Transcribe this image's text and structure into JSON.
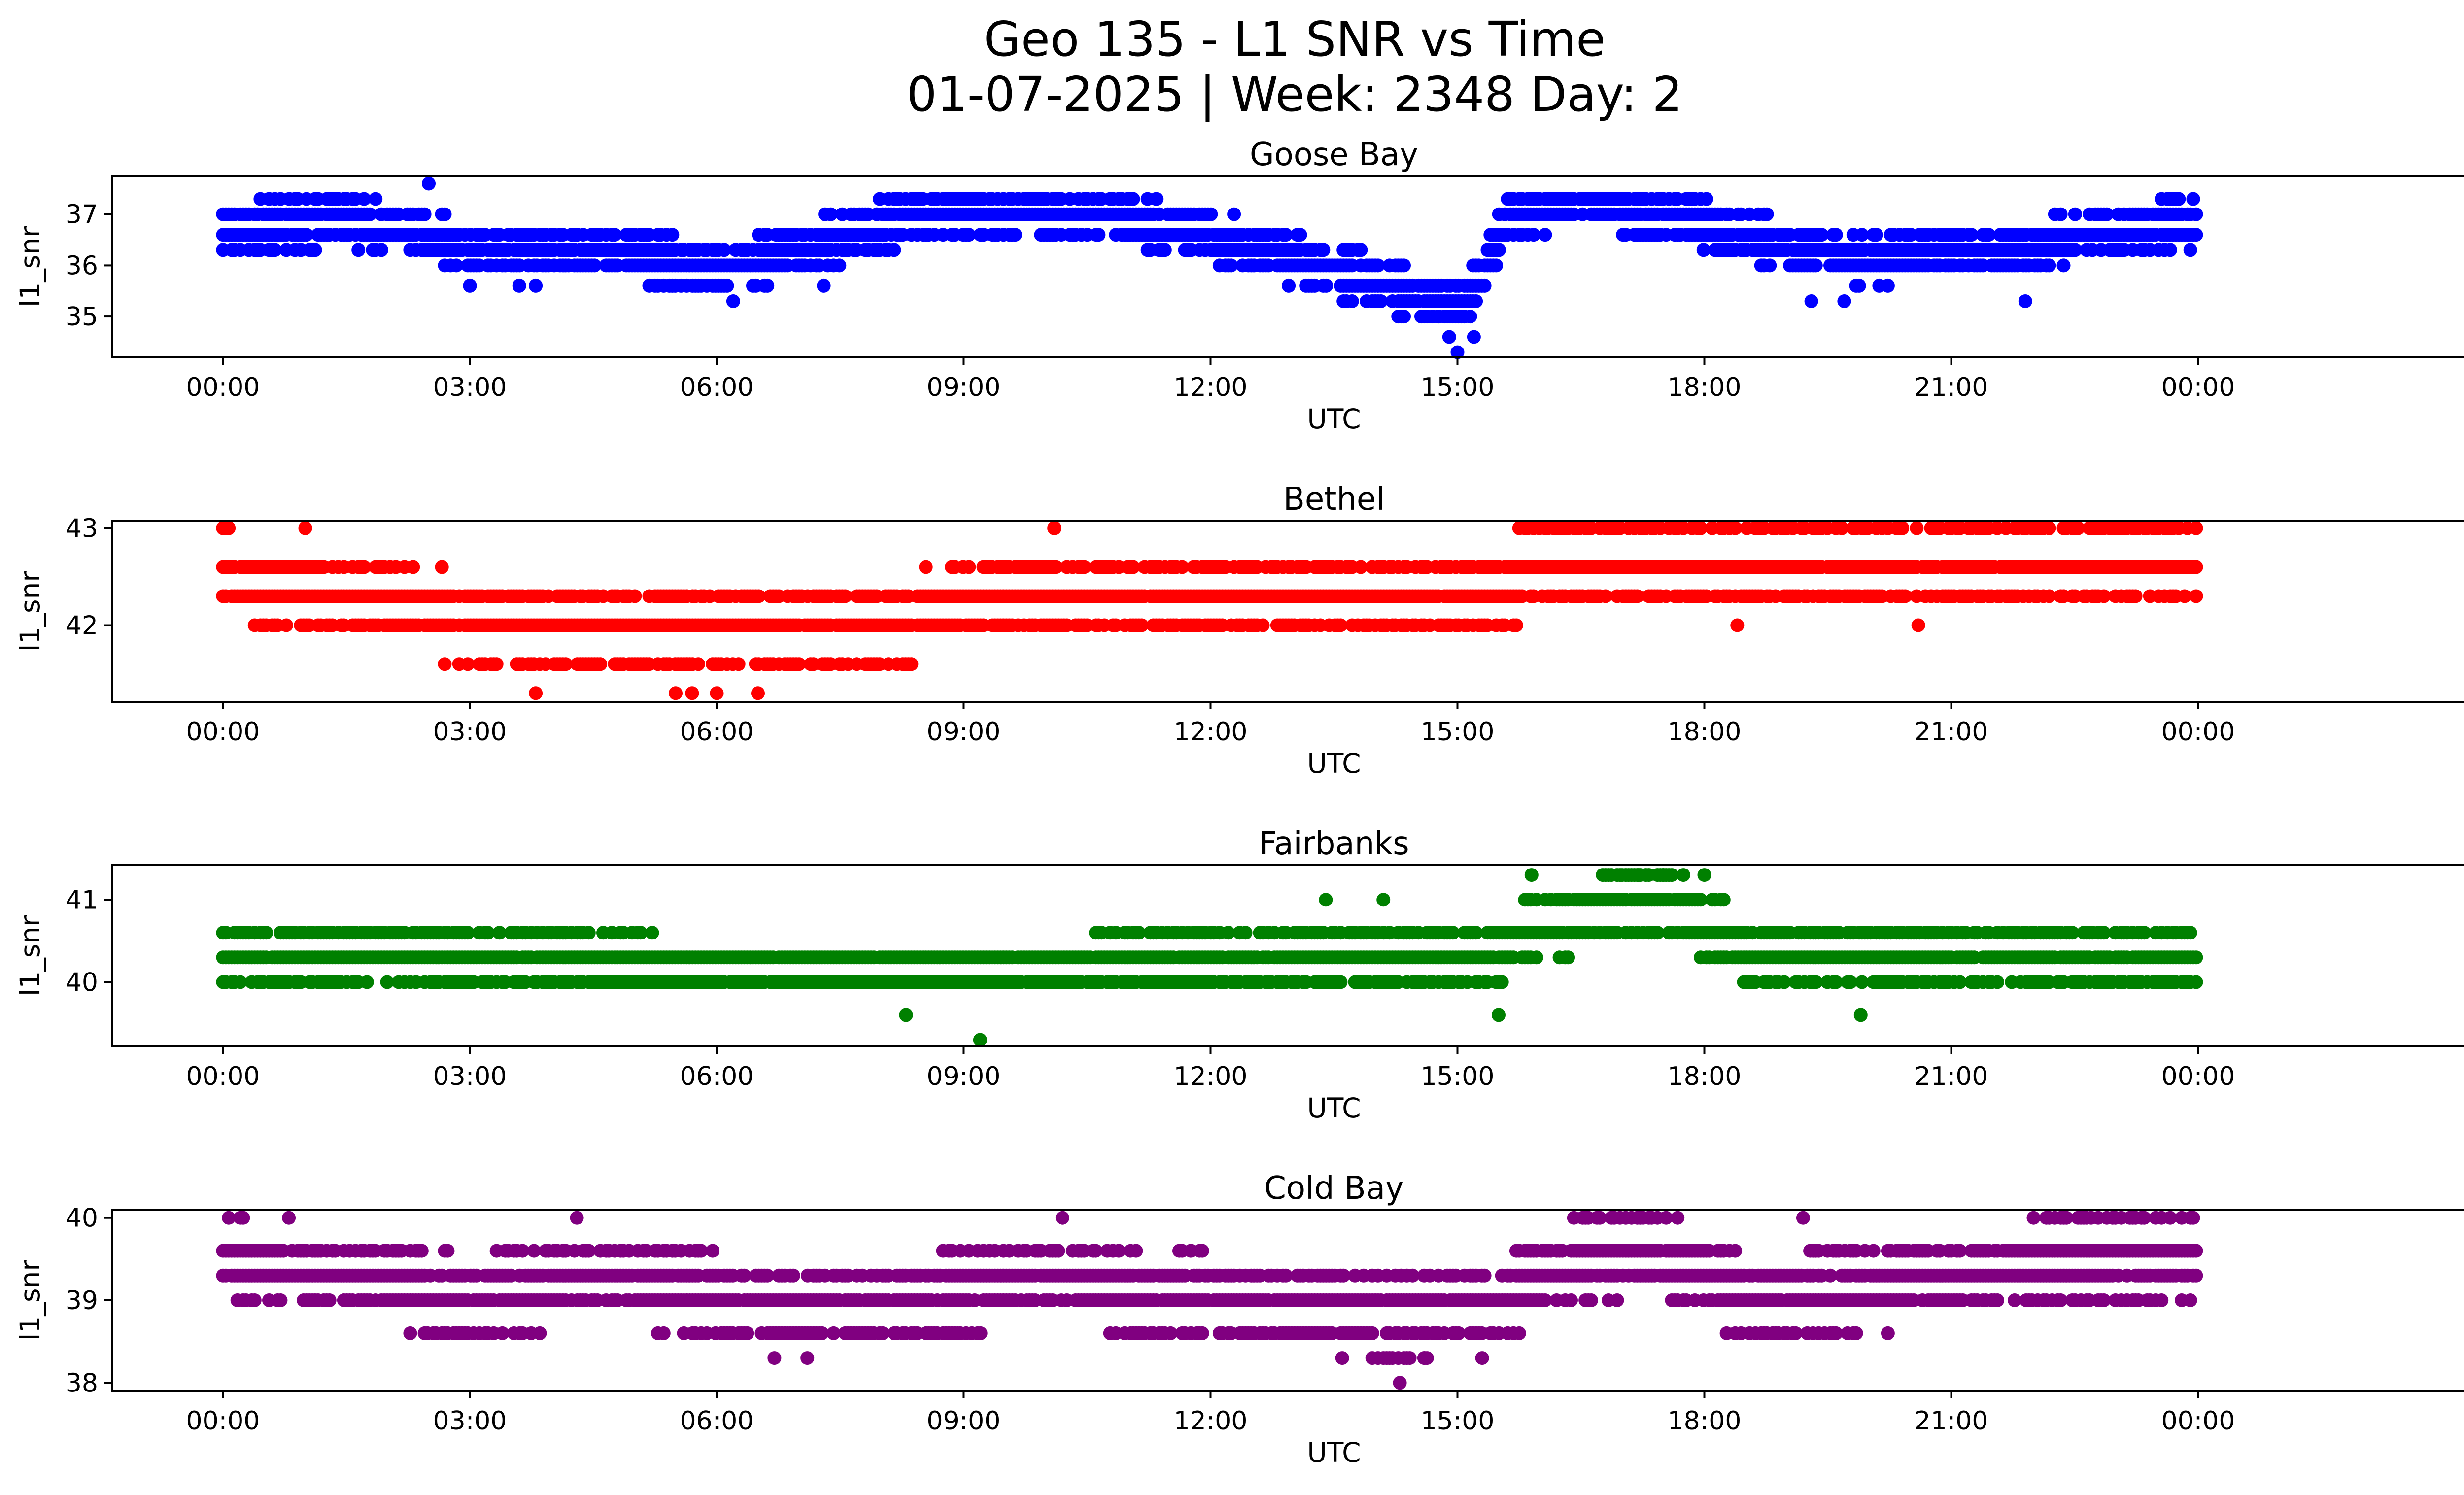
{
  "figure": {
    "title_line1": "Geo 135 - L1 SNR vs Time",
    "title_line2": "01-07-2025 | Week: 2348 Day: 2"
  },
  "chart_data": [
    {
      "type": "scatter",
      "title": "Goose Bay",
      "xlabel": "UTC",
      "ylabel": "l1_snr",
      "color": "#0000ff",
      "xlim": [
        -1.35,
        28.35
      ],
      "ylim": [
        34.2,
        37.75
      ],
      "yticks": [
        35,
        36,
        37
      ],
      "xticks": [
        0,
        3,
        6,
        9,
        12,
        15,
        18,
        21,
        24
      ],
      "xtick_labels": [
        "00:00",
        "03:00",
        "06:00",
        "09:00",
        "12:00",
        "15:00",
        "18:00",
        "21:00",
        "00:00"
      ],
      "levels": [
        37.3,
        37.0,
        36.6,
        36.3,
        36.0,
        35.6,
        35.3,
        35.0
      ],
      "trend": [
        [
          0,
          36.7
        ],
        [
          1.5,
          36.9
        ],
        [
          3,
          36.35
        ],
        [
          5,
          36.2
        ],
        [
          6,
          35.9
        ],
        [
          7,
          36.3
        ],
        [
          8,
          36.8
        ],
        [
          9,
          37.1
        ],
        [
          10.5,
          37.0
        ],
        [
          12,
          36.6
        ],
        [
          13,
          36.1
        ],
        [
          14.2,
          35.6
        ],
        [
          15,
          35.1
        ],
        [
          15.3,
          35.8
        ],
        [
          15.6,
          36.9
        ],
        [
          16.5,
          37.3
        ],
        [
          17.5,
          37.0
        ],
        [
          19,
          36.4
        ],
        [
          20,
          36.1
        ],
        [
          21,
          36.3
        ],
        [
          22,
          36.4
        ],
        [
          23,
          36.7
        ],
        [
          24,
          36.8
        ]
      ],
      "spread": 0.55,
      "outliers": [
        [
          2.5,
          37.6
        ],
        [
          15.0,
          34.3
        ],
        [
          14.9,
          34.6
        ],
        [
          15.2,
          34.6
        ],
        [
          6.2,
          35.3
        ],
        [
          19.3,
          35.3
        ],
        [
          19.7,
          35.3
        ],
        [
          21.9,
          35.3
        ],
        [
          3.0,
          35.6
        ],
        [
          3.6,
          35.6
        ],
        [
          3.8,
          35.6
        ],
        [
          7.3,
          35.6
        ]
      ]
    },
    {
      "type": "scatter",
      "title": "Bethel",
      "xlabel": "UTC",
      "ylabel": "l1_snr",
      "color": "#ff0000",
      "xlim": [
        -1.35,
        28.35
      ],
      "ylim": [
        41.21,
        43.08
      ],
      "yticks": [
        42,
        43
      ],
      "xticks": [
        0,
        3,
        6,
        9,
        12,
        15,
        18,
        21,
        24
      ],
      "xtick_labels": [
        "00:00",
        "03:00",
        "06:00",
        "09:00",
        "12:00",
        "15:00",
        "18:00",
        "21:00",
        "00:00"
      ],
      "levels": [
        43.0,
        42.6,
        42.3,
        42.0,
        41.6,
        41.3
      ],
      "trend": [
        [
          0,
          42.55
        ],
        [
          1,
          42.4
        ],
        [
          2,
          42.2
        ],
        [
          3,
          42.05
        ],
        [
          4,
          41.95
        ],
        [
          5,
          41.9
        ],
        [
          6,
          41.85
        ],
        [
          7,
          41.95
        ],
        [
          8,
          42.05
        ],
        [
          9,
          42.15
        ],
        [
          10,
          42.4
        ],
        [
          11,
          42.4
        ],
        [
          12,
          42.3
        ],
        [
          13,
          42.35
        ],
        [
          14,
          42.35
        ],
        [
          15,
          42.35
        ],
        [
          16,
          42.55
        ],
        [
          17,
          42.7
        ],
        [
          18,
          42.5
        ],
        [
          19,
          42.55
        ],
        [
          20,
          42.6
        ],
        [
          21,
          42.55
        ],
        [
          22,
          42.6
        ],
        [
          23,
          42.7
        ],
        [
          24,
          42.7
        ]
      ],
      "spread": 0.5,
      "outliers": [
        [
          3.8,
          41.3
        ],
        [
          5.5,
          41.3
        ],
        [
          5.7,
          41.3
        ],
        [
          6.0,
          41.3
        ],
        [
          6.5,
          41.3
        ],
        [
          10.1,
          43.0
        ],
        [
          1.0,
          43.0
        ],
        [
          18.4,
          42.0
        ],
        [
          20.6,
          42.0
        ]
      ]
    },
    {
      "type": "scatter",
      "title": "Fairbanks",
      "xlabel": "UTC",
      "ylabel": "l1_snr",
      "color": "#008000",
      "xlim": [
        -1.35,
        28.35
      ],
      "ylim": [
        39.22,
        41.42
      ],
      "yticks": [
        40,
        41
      ],
      "xticks": [
        0,
        3,
        6,
        9,
        12,
        15,
        18,
        21,
        24
      ],
      "xtick_labels": [
        "00:00",
        "03:00",
        "06:00",
        "09:00",
        "12:00",
        "15:00",
        "18:00",
        "21:00",
        "00:00"
      ],
      "levels": [
        41.3,
        41.0,
        40.6,
        40.3,
        40.0,
        39.6
      ],
      "trend": [
        [
          0,
          40.3
        ],
        [
          3,
          40.3
        ],
        [
          6,
          40.1
        ],
        [
          9,
          40.1
        ],
        [
          12,
          40.2
        ],
        [
          15,
          40.25
        ],
        [
          16.5,
          40.8
        ],
        [
          17.5,
          41.0
        ],
        [
          18.5,
          40.4
        ],
        [
          21,
          40.25
        ],
        [
          24,
          40.3
        ]
      ],
      "spread": 0.45,
      "outliers": [
        [
          9.2,
          39.3
        ],
        [
          13.4,
          41.0
        ],
        [
          14.1,
          41.0
        ],
        [
          15.9,
          41.3
        ],
        [
          17.0,
          41.3
        ],
        [
          17.2,
          41.3
        ],
        [
          17.5,
          41.3
        ],
        [
          18.0,
          41.3
        ],
        [
          15.5,
          39.6
        ],
        [
          19.9,
          39.6
        ],
        [
          8.3,
          39.6
        ]
      ]
    },
    {
      "type": "scatter",
      "title": "Cold Bay",
      "xlabel": "UTC",
      "ylabel": "l1_snr",
      "color": "#800080",
      "xlim": [
        -1.35,
        28.35
      ],
      "ylim": [
        37.9,
        40.1
      ],
      "yticks": [
        38,
        39,
        40
      ],
      "xticks": [
        0,
        3,
        6,
        9,
        12,
        15,
        18,
        21,
        24
      ],
      "xtick_labels": [
        "00:00",
        "03:00",
        "06:00",
        "09:00",
        "12:00",
        "15:00",
        "18:00",
        "21:00",
        "00:00"
      ],
      "levels": [
        40.0,
        39.6,
        39.3,
        39.0,
        38.6,
        38.3
      ],
      "trend": [
        [
          0,
          39.5
        ],
        [
          1.5,
          39.3
        ],
        [
          3,
          39.0
        ],
        [
          4.5,
          39.25
        ],
        [
          6,
          39.05
        ],
        [
          7,
          38.85
        ],
        [
          8.5,
          39.0
        ],
        [
          10,
          39.3
        ],
        [
          11,
          39.1
        ],
        [
          12,
          39.05
        ],
        [
          13,
          38.9
        ],
        [
          14.5,
          38.8
        ],
        [
          15.5,
          38.95
        ],
        [
          16.5,
          39.5
        ],
        [
          17.5,
          39.6
        ],
        [
          18.5,
          39.0
        ],
        [
          20,
          39.1
        ],
        [
          21,
          39.3
        ],
        [
          22,
          39.45
        ],
        [
          23,
          39.5
        ],
        [
          24,
          39.55
        ]
      ],
      "spread": 0.55,
      "outliers": [
        [
          14.3,
          38.0
        ],
        [
          6.7,
          38.3
        ],
        [
          7.1,
          38.3
        ],
        [
          13.6,
          38.3
        ],
        [
          14.1,
          38.3
        ],
        [
          14.6,
          38.3
        ],
        [
          15.3,
          38.3
        ],
        [
          4.3,
          40.0
        ],
        [
          0.8,
          40.0
        ],
        [
          10.2,
          40.0
        ],
        [
          19.2,
          40.0
        ],
        [
          22.0,
          40.0
        ],
        [
          22.7,
          40.0
        ]
      ]
    }
  ]
}
